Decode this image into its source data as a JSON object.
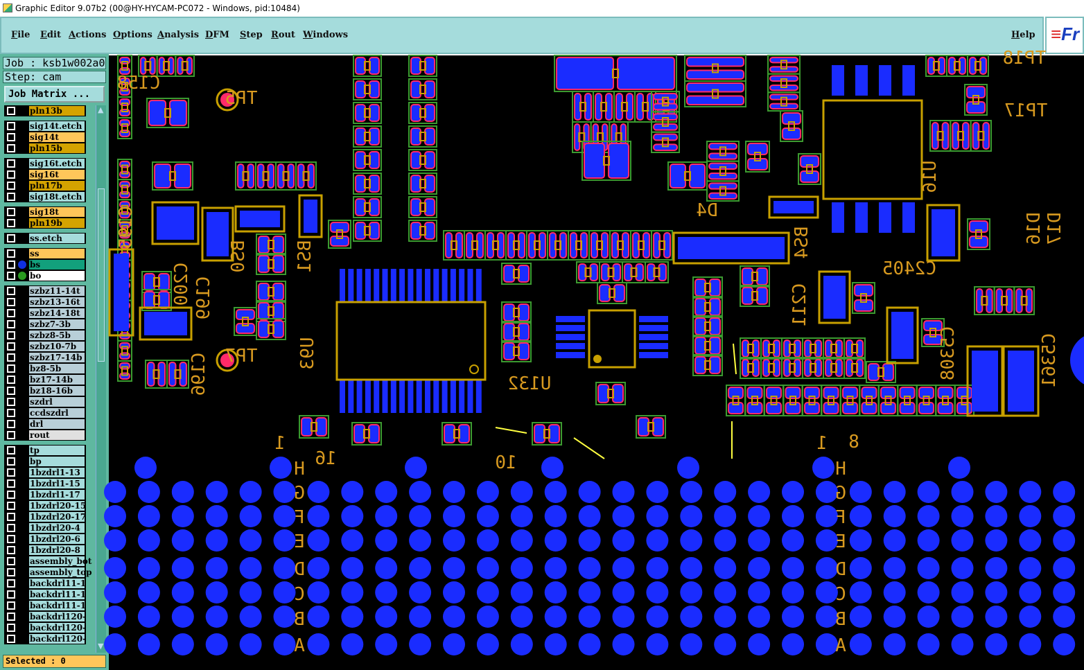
{
  "window": {
    "title": "Graphic Editor 9.07b2 (00@HY-HYCAM-PC072 - Windows, pid:10484)"
  },
  "menu": [
    "File",
    "Edit",
    "Actions",
    "Options",
    "Analysis",
    "DFM",
    "Step",
    "Rout",
    "Windows"
  ],
  "help": "Help",
  "logo": {
    "text": "Fr"
  },
  "job": "Job : ksb1w002a0",
  "step": "Step: cam",
  "job_matrix": "Job Matrix ...",
  "selected": "Selected : 0",
  "layer_colors": {
    "pln": "#d4a300",
    "sig": "#ffc65a",
    "etch": "#a6dcdc",
    "ss": "#ffc65a",
    "bs": "#12a07c",
    "bo": "#ffffff",
    "szbz": "#b8cfd8",
    "rout": "#e0e0e0",
    "other": "#a6dcdc"
  },
  "layers": [
    {
      "name": "pln13b",
      "type": "pln"
    },
    {
      "name": "sig14t.etch",
      "type": "etch"
    },
    {
      "name": "sig14t",
      "type": "sig"
    },
    {
      "name": "pln15b",
      "type": "pln"
    },
    {
      "name": "sig16t.etch",
      "type": "etch"
    },
    {
      "name": "sig16t",
      "type": "sig"
    },
    {
      "name": "pln17b",
      "type": "pln"
    },
    {
      "name": "sig18t.etch",
      "type": "etch"
    },
    {
      "name": "sig18t",
      "type": "sig"
    },
    {
      "name": "pln19b",
      "type": "pln"
    },
    {
      "name": "ss.etch",
      "type": "etch"
    },
    {
      "name": "ss",
      "type": "ss"
    },
    {
      "name": "bs",
      "type": "bs",
      "dot": "#1030e0"
    },
    {
      "name": "bo",
      "type": "bo",
      "dot": "#2a9a20"
    },
    {
      "name": "szbz11-14t",
      "type": "szbz"
    },
    {
      "name": "szbz13-16t",
      "type": "szbz"
    },
    {
      "name": "szbz14-18t",
      "type": "szbz"
    },
    {
      "name": "szbz7-3b",
      "type": "szbz"
    },
    {
      "name": "szbz8-5b",
      "type": "szbz"
    },
    {
      "name": "szbz10-7b",
      "type": "szbz"
    },
    {
      "name": "szbz17-14b",
      "type": "szbz"
    },
    {
      "name": "bz8-5b",
      "type": "szbz"
    },
    {
      "name": "bz17-14b",
      "type": "szbz"
    },
    {
      "name": "bz18-16b",
      "type": "szbz"
    },
    {
      "name": "szdrl",
      "type": "szbz"
    },
    {
      "name": "ccdszdrl",
      "type": "szbz"
    },
    {
      "name": "drl",
      "type": "szbz"
    },
    {
      "name": "rout",
      "type": "rout"
    },
    {
      "name": "tp",
      "type": "other"
    },
    {
      "name": "bp",
      "type": "other"
    },
    {
      "name": "1bzdrl1-13",
      "type": "other"
    },
    {
      "name": "1bzdrl1-15",
      "type": "other"
    },
    {
      "name": "1bzdrl1-17",
      "type": "other"
    },
    {
      "name": "1bzdrl20-15",
      "type": "other"
    },
    {
      "name": "1bzdrl20-17",
      "type": "other"
    },
    {
      "name": "1bzdrl20-4",
      "type": "other"
    },
    {
      "name": "1bzdrl20-6",
      "type": "other"
    },
    {
      "name": "1bzdrl20-8",
      "type": "other"
    },
    {
      "name": "assembly_bot",
      "type": "other"
    },
    {
      "name": "assembly_top",
      "type": "other"
    },
    {
      "name": "backdrl11-1",
      "type": "other"
    },
    {
      "name": "backdrl11-1",
      "type": "other"
    },
    {
      "name": "backdrl11-1",
      "type": "other"
    },
    {
      "name": "backdrl120-",
      "type": "other"
    },
    {
      "name": "backdrl120-",
      "type": "other"
    },
    {
      "name": "backdrl120-",
      "type": "other"
    }
  ],
  "board": {
    "pad_color": "#1a2cff",
    "outline_color": "#c8a000",
    "mask_color": "#ff2a6a",
    "designators": [
      "C158",
      "TP5",
      "TP17",
      "TP18",
      "C195",
      "BS1",
      "BS0",
      "C200",
      "C199",
      "C196",
      "TP7",
      "U93",
      "U132",
      "D4",
      "BS4",
      "U16",
      "C2405",
      "C211",
      "C5308",
      "C5361",
      "D16",
      "D17"
    ],
    "bga_rows": [
      "H",
      "G",
      "F",
      "E",
      "D",
      "C",
      "B",
      "A"
    ],
    "bga_numbers": [
      "1",
      "16",
      "10",
      "8",
      "1"
    ]
  }
}
